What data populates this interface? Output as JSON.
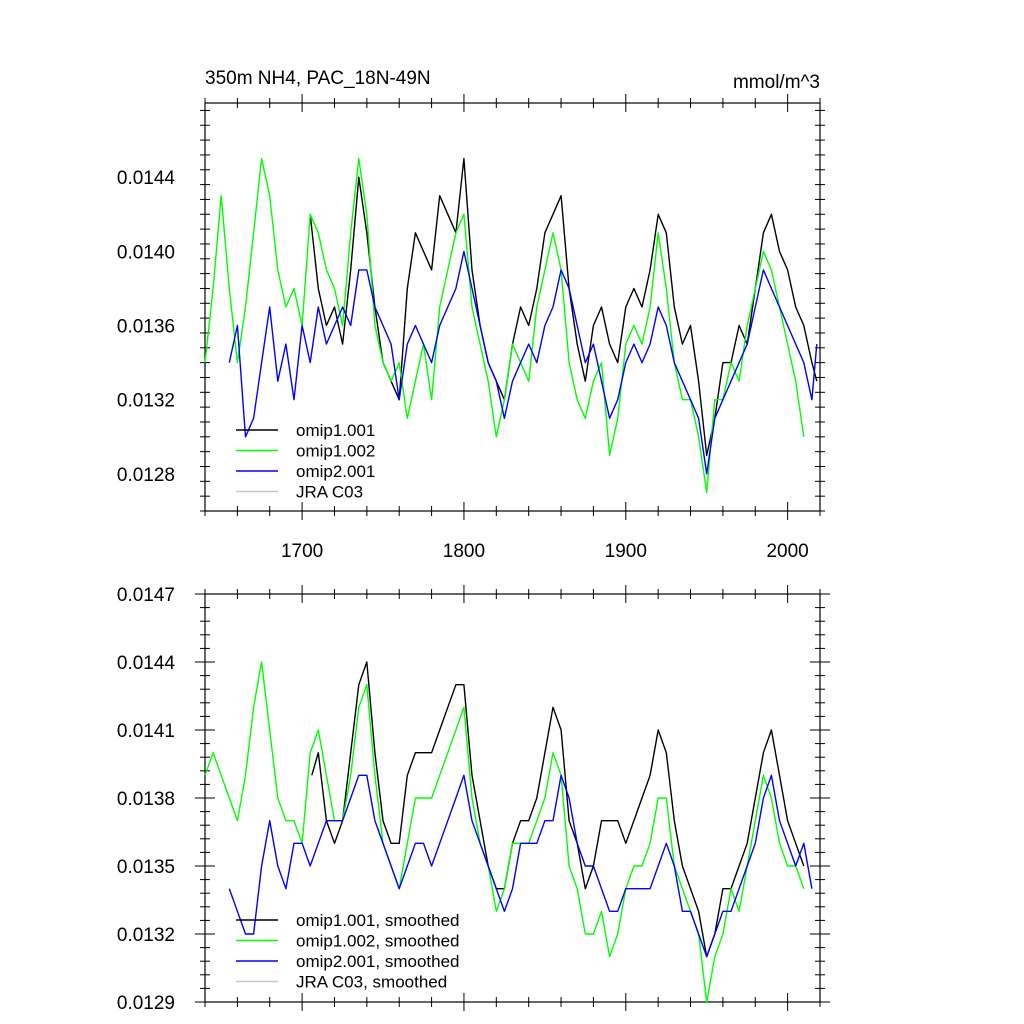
{
  "chart_data": [
    {
      "type": "line",
      "title": "350m NH4, PAC_18N-49N",
      "units": "mmol/m^3",
      "xlim": [
        1640,
        2020
      ],
      "ylim": [
        0.0126,
        0.0148
      ],
      "xticks": [
        1700,
        1800,
        1900,
        2000
      ],
      "xtick_labels": [
        "1700",
        "1800",
        "1900",
        "2000"
      ],
      "yticks": [
        0.0128,
        0.0132,
        0.0136,
        0.014,
        0.0144
      ],
      "ytick_labels": [
        "0.0128",
        "0.0132",
        "0.0136",
        "0.0140",
        "0.0144"
      ],
      "legend_position": "bottom-left",
      "series": [
        {
          "name": "omip1.001",
          "color": "#000000",
          "x": [
            1705,
            1710,
            1715,
            1720,
            1725,
            1730,
            1735,
            1740,
            1745,
            1750,
            1755,
            1760,
            1765,
            1770,
            1775,
            1780,
            1785,
            1790,
            1795,
            1800,
            1805,
            1810,
            1815,
            1820,
            1825,
            1830,
            1835,
            1840,
            1845,
            1850,
            1855,
            1860,
            1865,
            1870,
            1875,
            1880,
            1885,
            1890,
            1895,
            1900,
            1905,
            1910,
            1915,
            1920,
            1925,
            1930,
            1935,
            1940,
            1945,
            1950,
            1955,
            1960,
            1965,
            1970,
            1975,
            1980,
            1985,
            1990,
            1995,
            2000,
            2005,
            2010,
            2015,
            2018
          ],
          "y": [
            0.0142,
            0.0138,
            0.0136,
            0.0137,
            0.0135,
            0.0139,
            0.0144,
            0.0141,
            0.0137,
            0.0134,
            0.0133,
            0.0132,
            0.0138,
            0.0141,
            0.014,
            0.0139,
            0.0143,
            0.0142,
            0.0141,
            0.0145,
            0.0139,
            0.0136,
            0.0134,
            0.0133,
            0.0132,
            0.0135,
            0.0137,
            0.0136,
            0.0138,
            0.0141,
            0.0142,
            0.0143,
            0.0138,
            0.0135,
            0.0133,
            0.0136,
            0.0137,
            0.0135,
            0.0134,
            0.0137,
            0.0138,
            0.0137,
            0.0139,
            0.0142,
            0.0141,
            0.0137,
            0.0135,
            0.0136,
            0.0133,
            0.0129,
            0.0131,
            0.0134,
            0.0134,
            0.0136,
            0.0135,
            0.0138,
            0.0141,
            0.0142,
            0.014,
            0.0139,
            0.0137,
            0.0136,
            0.0134,
            0.0133
          ]
        },
        {
          "name": "omip1.002",
          "color": "#00ff00",
          "x": [
            1640,
            1645,
            1650,
            1655,
            1660,
            1665,
            1670,
            1675,
            1680,
            1685,
            1690,
            1695,
            1700,
            1705,
            1710,
            1715,
            1720,
            1725,
            1730,
            1735,
            1740,
            1745,
            1750,
            1755,
            1760,
            1765,
            1770,
            1775,
            1780,
            1785,
            1790,
            1795,
            1800,
            1805,
            1810,
            1815,
            1820,
            1825,
            1830,
            1835,
            1840,
            1845,
            1850,
            1855,
            1860,
            1865,
            1870,
            1875,
            1880,
            1885,
            1890,
            1895,
            1900,
            1905,
            1910,
            1915,
            1920,
            1925,
            1930,
            1935,
            1940,
            1945,
            1950,
            1955,
            1960,
            1965,
            1970,
            1975,
            1980,
            1985,
            1990,
            1995,
            2000,
            2005,
            2010
          ],
          "y": [
            0.0134,
            0.0138,
            0.0143,
            0.0138,
            0.0134,
            0.0137,
            0.0141,
            0.0145,
            0.0143,
            0.0139,
            0.0137,
            0.0138,
            0.0136,
            0.0142,
            0.0141,
            0.0139,
            0.0138,
            0.0136,
            0.0141,
            0.0145,
            0.0142,
            0.0136,
            0.0134,
            0.0133,
            0.0134,
            0.0131,
            0.0133,
            0.0135,
            0.0132,
            0.0137,
            0.0139,
            0.0141,
            0.0142,
            0.0137,
            0.0135,
            0.0133,
            0.013,
            0.0132,
            0.0135,
            0.0134,
            0.0133,
            0.0137,
            0.0139,
            0.0141,
            0.0139,
            0.0134,
            0.0132,
            0.0131,
            0.0133,
            0.0134,
            0.0129,
            0.0131,
            0.0135,
            0.0136,
            0.0135,
            0.0137,
            0.0141,
            0.0138,
            0.0134,
            0.0132,
            0.0132,
            0.013,
            0.0127,
            0.0132,
            0.0132,
            0.0134,
            0.0133,
            0.0136,
            0.0138,
            0.014,
            0.0139,
            0.0137,
            0.0135,
            0.0133,
            0.013
          ]
        },
        {
          "name": "omip2.001",
          "color": "#0000ff",
          "x": [
            1655,
            1660,
            1665,
            1670,
            1675,
            1680,
            1685,
            1690,
            1695,
            1700,
            1705,
            1710,
            1715,
            1720,
            1725,
            1730,
            1735,
            1740,
            1745,
            1750,
            1755,
            1760,
            1765,
            1770,
            1775,
            1780,
            1785,
            1790,
            1795,
            1800,
            1805,
            1810,
            1815,
            1820,
            1825,
            1830,
            1835,
            1840,
            1845,
            1850,
            1855,
            1860,
            1865,
            1870,
            1875,
            1880,
            1885,
            1890,
            1895,
            1900,
            1905,
            1910,
            1915,
            1920,
            1925,
            1930,
            1935,
            1940,
            1945,
            1950,
            1955,
            1960,
            1965,
            1970,
            1975,
            1980,
            1985,
            1990,
            1995,
            2000,
            2005,
            2010,
            2015,
            2018
          ],
          "y": [
            0.0134,
            0.0136,
            0.013,
            0.0131,
            0.0134,
            0.0137,
            0.0133,
            0.0135,
            0.0132,
            0.0136,
            0.0134,
            0.0137,
            0.0135,
            0.0136,
            0.0137,
            0.0136,
            0.0139,
            0.0139,
            0.0137,
            0.0136,
            0.0135,
            0.0132,
            0.0135,
            0.0136,
            0.0135,
            0.0134,
            0.0136,
            0.0137,
            0.0138,
            0.014,
            0.0138,
            0.0136,
            0.0134,
            0.0133,
            0.0131,
            0.0133,
            0.0134,
            0.0135,
            0.0134,
            0.0136,
            0.0137,
            0.0139,
            0.0138,
            0.0136,
            0.0134,
            0.0135,
            0.0133,
            0.0131,
            0.0132,
            0.0134,
            0.0135,
            0.0134,
            0.0135,
            0.0137,
            0.0136,
            0.0134,
            0.0133,
            0.0132,
            0.0131,
            0.0128,
            0.0131,
            0.0132,
            0.0133,
            0.0134,
            0.0135,
            0.0137,
            0.0139,
            0.0138,
            0.0137,
            0.0136,
            0.0135,
            0.0134,
            0.0132,
            0.0135
          ]
        },
        {
          "name": "JRA C03",
          "color": "#c8c8c8",
          "x": [],
          "y": []
        }
      ]
    },
    {
      "type": "line",
      "xlim": [
        1640,
        2020
      ],
      "ylim": [
        0.0129,
        0.0147
      ],
      "yticks": [
        0.0129,
        0.0132,
        0.0135,
        0.0138,
        0.0141,
        0.0144,
        0.0147
      ],
      "ytick_labels": [
        "0.0129",
        "0.0132",
        "0.0135",
        "0.0138",
        "0.0141",
        "0.0144",
        "0.0147"
      ],
      "legend_position": "bottom-left",
      "series": [
        {
          "name": "omip1.001, smoothed",
          "color": "#000000",
          "x": [
            1706,
            1710,
            1715,
            1720,
            1725,
            1730,
            1735,
            1740,
            1745,
            1750,
            1755,
            1760,
            1765,
            1770,
            1775,
            1780,
            1785,
            1790,
            1795,
            1800,
            1805,
            1810,
            1815,
            1820,
            1825,
            1830,
            1835,
            1840,
            1845,
            1850,
            1855,
            1860,
            1865,
            1870,
            1875,
            1880,
            1885,
            1890,
            1895,
            1900,
            1905,
            1910,
            1915,
            1920,
            1925,
            1930,
            1935,
            1940,
            1945,
            1950,
            1955,
            1960,
            1965,
            1970,
            1975,
            1980,
            1985,
            1990,
            1995,
            2000,
            2005,
            2010
          ],
          "y": [
            0.0139,
            0.014,
            0.0137,
            0.0136,
            0.0137,
            0.014,
            0.0143,
            0.0144,
            0.014,
            0.0137,
            0.0136,
            0.0136,
            0.0139,
            0.014,
            0.014,
            0.014,
            0.0141,
            0.0142,
            0.0143,
            0.0143,
            0.0139,
            0.0137,
            0.0135,
            0.0134,
            0.0134,
            0.0136,
            0.0137,
            0.0137,
            0.0138,
            0.014,
            0.0142,
            0.0141,
            0.0137,
            0.0136,
            0.0134,
            0.0135,
            0.0137,
            0.0137,
            0.0137,
            0.0136,
            0.0137,
            0.0138,
            0.0139,
            0.0141,
            0.014,
            0.0137,
            0.0135,
            0.0134,
            0.0133,
            0.0131,
            0.0132,
            0.0134,
            0.0134,
            0.0135,
            0.0136,
            0.0138,
            0.014,
            0.0141,
            0.0139,
            0.0137,
            0.0136,
            0.0135
          ]
        },
        {
          "name": "omip1.002, smoothed",
          "color": "#00ff00",
          "x": [
            1640,
            1645,
            1650,
            1655,
            1660,
            1665,
            1670,
            1675,
            1680,
            1685,
            1690,
            1695,
            1700,
            1705,
            1710,
            1715,
            1720,
            1725,
            1730,
            1735,
            1740,
            1745,
            1750,
            1755,
            1760,
            1765,
            1770,
            1775,
            1780,
            1785,
            1790,
            1795,
            1800,
            1805,
            1810,
            1815,
            1820,
            1825,
            1830,
            1835,
            1840,
            1845,
            1850,
            1855,
            1860,
            1865,
            1870,
            1875,
            1880,
            1885,
            1890,
            1895,
            1900,
            1905,
            1910,
            1915,
            1920,
            1925,
            1930,
            1935,
            1940,
            1945,
            1950,
            1955,
            1960,
            1965,
            1970,
            1975,
            1980,
            1985,
            1990,
            1995,
            2000,
            2005,
            2010
          ],
          "y": [
            0.0139,
            0.014,
            0.0139,
            0.0138,
            0.0137,
            0.0139,
            0.0142,
            0.0144,
            0.0141,
            0.0138,
            0.0137,
            0.0137,
            0.0136,
            0.014,
            0.0141,
            0.0139,
            0.0137,
            0.0137,
            0.0139,
            0.0142,
            0.0143,
            0.0139,
            0.0136,
            0.0135,
            0.0134,
            0.0136,
            0.0138,
            0.0138,
            0.0138,
            0.0139,
            0.014,
            0.0141,
            0.0142,
            0.0138,
            0.0136,
            0.0135,
            0.0133,
            0.0134,
            0.0136,
            0.0136,
            0.0136,
            0.0137,
            0.0138,
            0.014,
            0.0139,
            0.0135,
            0.0134,
            0.0132,
            0.0132,
            0.0133,
            0.0131,
            0.0132,
            0.0134,
            0.0135,
            0.0135,
            0.0136,
            0.0138,
            0.0138,
            0.0135,
            0.0134,
            0.0133,
            0.0132,
            0.0129,
            0.0131,
            0.0132,
            0.0134,
            0.0133,
            0.0135,
            0.0137,
            0.0139,
            0.0138,
            0.0136,
            0.0135,
            0.0135,
            0.0134
          ]
        },
        {
          "name": "omip2.001, smoothed",
          "color": "#0000ff",
          "x": [
            1655,
            1660,
            1665,
            1670,
            1675,
            1680,
            1685,
            1690,
            1695,
            1700,
            1705,
            1710,
            1715,
            1720,
            1725,
            1730,
            1735,
            1740,
            1745,
            1750,
            1755,
            1760,
            1765,
            1770,
            1775,
            1780,
            1785,
            1790,
            1795,
            1800,
            1805,
            1810,
            1815,
            1820,
            1825,
            1830,
            1835,
            1840,
            1845,
            1850,
            1855,
            1860,
            1865,
            1870,
            1875,
            1880,
            1885,
            1890,
            1895,
            1900,
            1905,
            1910,
            1915,
            1920,
            1925,
            1930,
            1935,
            1940,
            1945,
            1950,
            1955,
            1960,
            1965,
            1970,
            1975,
            1980,
            1985,
            1990,
            1995,
            2000,
            2005,
            2010,
            2015
          ],
          "y": [
            0.0134,
            0.0133,
            0.0132,
            0.0132,
            0.0135,
            0.0137,
            0.0135,
            0.0134,
            0.0136,
            0.0136,
            0.0135,
            0.0136,
            0.0137,
            0.0137,
            0.0137,
            0.0138,
            0.0139,
            0.0139,
            0.0137,
            0.0136,
            0.0135,
            0.0134,
            0.0135,
            0.0136,
            0.0136,
            0.0135,
            0.0136,
            0.0137,
            0.0138,
            0.0139,
            0.0137,
            0.0136,
            0.0135,
            0.0134,
            0.0133,
            0.0134,
            0.0136,
            0.0136,
            0.0136,
            0.0137,
            0.0137,
            0.0139,
            0.0138,
            0.0136,
            0.0135,
            0.0135,
            0.0134,
            0.0133,
            0.0133,
            0.0134,
            0.0134,
            0.0134,
            0.0134,
            0.0135,
            0.0136,
            0.0135,
            0.0133,
            0.0133,
            0.0132,
            0.0131,
            0.0132,
            0.0133,
            0.0133,
            0.0134,
            0.0135,
            0.0136,
            0.0138,
            0.0139,
            0.0137,
            0.0136,
            0.0135,
            0.0136,
            0.0134
          ]
        },
        {
          "name": "JRA C03, smoothed",
          "color": "#c8c8c8",
          "x": [],
          "y": []
        }
      ]
    }
  ]
}
